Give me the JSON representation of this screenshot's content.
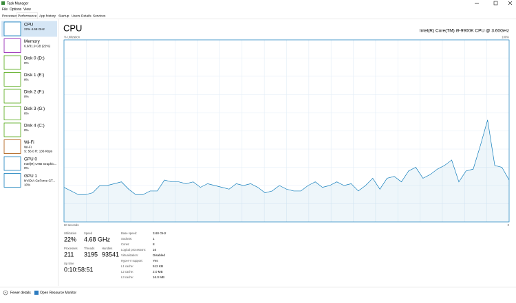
{
  "window": {
    "title": "Task Manager",
    "menu": [
      "File",
      "Options",
      "View"
    ],
    "tabs": [
      "Processes",
      "Performance",
      "App history",
      "Startup",
      "Users",
      "Details",
      "Services"
    ],
    "active_tab": 1
  },
  "sidebar": [
    {
      "name": "CPU",
      "details": [
        "22% 4.68 GHz"
      ],
      "color": "#117dbb"
    },
    {
      "name": "Memory",
      "details": [
        "6.9/31.9 GB (22%)"
      ],
      "color": "#8b12ae"
    },
    {
      "name": "Disk 0 (D:)",
      "details": [
        "0%"
      ],
      "color": "#4da60c"
    },
    {
      "name": "Disk 1 (E:)",
      "details": [
        "0%"
      ],
      "color": "#4da60c"
    },
    {
      "name": "Disk 2 (F:)",
      "details": [
        "0%"
      ],
      "color": "#4da60c"
    },
    {
      "name": "Disk 3 (G:)",
      "details": [
        "0%"
      ],
      "color": "#4da60c"
    },
    {
      "name": "Disk 4 (C:)",
      "details": [
        "0%"
      ],
      "color": "#4da60c"
    },
    {
      "name": "Wi-Fi",
      "details": [
        "Wi-Fi",
        "S: 56.0 R: 136 Kbps"
      ],
      "color": "#a74f01"
    },
    {
      "name": "GPU 0",
      "details": [
        "Intel(R) UHD Graphic...",
        "0%"
      ],
      "color": "#117dbb"
    },
    {
      "name": "GPU 1",
      "details": [
        "NVIDIA GeForce GT...",
        "10%"
      ],
      "color": "#117dbb"
    }
  ],
  "active_item": 0,
  "header": {
    "title": "CPU",
    "processor": "Intel(R) Core(TM) i9-9900K CPU @ 3.60GHz"
  },
  "graph": {
    "type": "line",
    "y_label": "% Utilization",
    "x_start_label": "60 seconds",
    "x_end_label": "0",
    "ylim": [
      0,
      100
    ],
    "yticks": [
      {
        "value": 100,
        "label": "100%"
      }
    ],
    "color": "#117dbb",
    "values": [
      19,
      17,
      15,
      15,
      16,
      20,
      20,
      21,
      22,
      18,
      15,
      15,
      17,
      17,
      23,
      22,
      22,
      21,
      22,
      19,
      21,
      20,
      19,
      18,
      21,
      20,
      21,
      19,
      16,
      17,
      20,
      18,
      17,
      17,
      20,
      22,
      19,
      20,
      22,
      20,
      21,
      17,
      20,
      24,
      18,
      24,
      25,
      22,
      28,
      30,
      24,
      26,
      29,
      31,
      34,
      22,
      28,
      29,
      42,
      56,
      31,
      30,
      23
    ]
  },
  "stats": [
    {
      "label": "Utilization",
      "value": "22%"
    },
    {
      "label": "Speed",
      "value": "4.68 GHz"
    },
    {
      "label": "Processes",
      "value": "211"
    },
    {
      "label": "Threads",
      "value": "3195"
    },
    {
      "label": "Handles",
      "value": "93541"
    },
    {
      "label": "Up time",
      "value": "0:10:58:51"
    }
  ],
  "info": [
    {
      "label": "Base speed:",
      "value": "3.60 GHz"
    },
    {
      "label": "Sockets:",
      "value": "1"
    },
    {
      "label": "Cores:",
      "value": "8"
    },
    {
      "label": "Logical processors:",
      "value": "16"
    },
    {
      "label": "Virtualization:",
      "value": "Disabled"
    },
    {
      "label": "Hyper-V support:",
      "value": "Yes"
    },
    {
      "label": "L1 cache:",
      "value": "512 KB"
    },
    {
      "label": "L2 cache:",
      "value": "2.0 MB"
    },
    {
      "label": "L3 cache:",
      "value": "16.0 MB"
    }
  ],
  "footer": {
    "fewer_details": "Fewer details",
    "resource_monitor": "Open Resource Monitor"
  }
}
